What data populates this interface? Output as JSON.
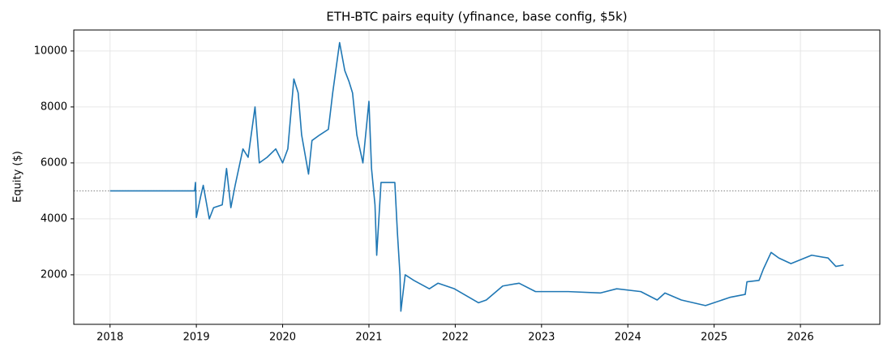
{
  "chart_data": {
    "type": "line",
    "title": "ETH-BTC pairs equity (yfinance, base config, $5k)",
    "y_label": "Equity ($)",
    "x": [
      2018.0,
      2018.98,
      2018.99,
      2019.0,
      2019.05,
      2019.08,
      2019.15,
      2019.2,
      2019.3,
      2019.35,
      2019.4,
      2019.45,
      2019.54,
      2019.6,
      2019.68,
      2019.73,
      2019.82,
      2019.92,
      2020.0,
      2020.06,
      2020.13,
      2020.18,
      2020.22,
      2020.3,
      2020.34,
      2020.43,
      2020.53,
      2020.58,
      2020.66,
      2020.72,
      2020.77,
      2020.81,
      2020.86,
      2020.93,
      2021.0,
      2021.03,
      2021.07,
      2021.09,
      2021.14,
      2021.3,
      2021.33,
      2021.36,
      2021.37,
      2021.42,
      2021.52,
      2021.7,
      2021.8,
      2021.99,
      2022.27,
      2022.36,
      2022.55,
      2022.74,
      2022.93,
      2023.31,
      2023.68,
      2023.87,
      2024.15,
      2024.34,
      2024.43,
      2024.62,
      2024.9,
      2025.19,
      2025.36,
      2025.38,
      2025.52,
      2025.57,
      2025.66,
      2025.75,
      2025.89,
      2026.13,
      2026.32,
      2026.41,
      2026.5
    ],
    "series": [
      {
        "name": "Equity",
        "color": "#1f77b4",
        "values": [
          5000,
          5000,
          5300,
          4050,
          4800,
          5200,
          4000,
          4400,
          4500,
          5800,
          4400,
          5200,
          6500,
          6200,
          8000,
          6000,
          6200,
          6500,
          6000,
          6500,
          9000,
          8500,
          7000,
          5600,
          6800,
          7000,
          7200,
          8500,
          10300,
          9300,
          8900,
          8500,
          7000,
          6000,
          8200,
          5800,
          4500,
          2700,
          5300,
          5300,
          3500,
          2000,
          700,
          2000,
          1800,
          1500,
          1700,
          1500,
          1000,
          1100,
          1600,
          1700,
          1400,
          1400,
          1350,
          1500,
          1400,
          1100,
          1350,
          1100,
          900,
          1200,
          1300,
          1750,
          1800,
          2200,
          2800,
          2600,
          2400,
          2700,
          2600,
          2300,
          2350
        ]
      }
    ],
    "reference_line": 5000,
    "xlim": [
      2017.58,
      2026.92
    ],
    "xticks": [
      2018,
      2019,
      2020,
      2021,
      2022,
      2023,
      2024,
      2025,
      2026
    ],
    "ylim": [
      230,
      10750
    ],
    "yticks": [
      2000,
      4000,
      6000,
      8000,
      10000
    ],
    "grid": true
  }
}
